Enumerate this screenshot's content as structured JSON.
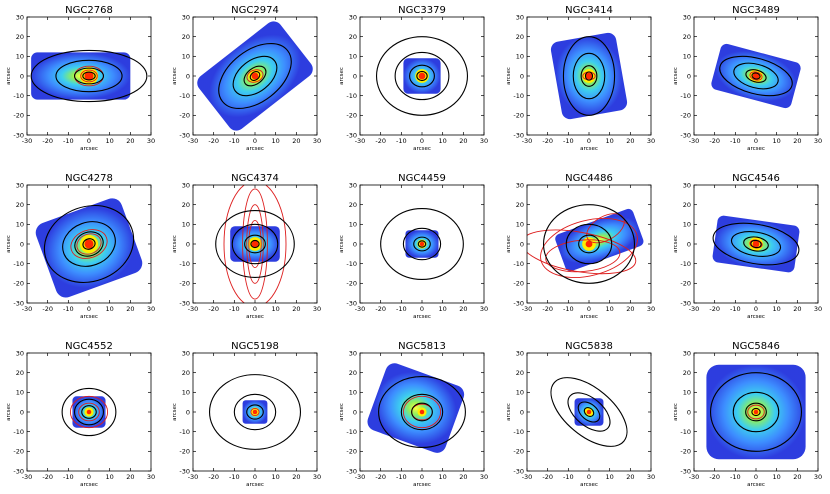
{
  "chart_data": {
    "type": "map-grid",
    "layout": {
      "rows": 3,
      "cols": 5
    },
    "xlabel": "arcsec",
    "ylabel": "arcsec",
    "xlim": [
      -30,
      30
    ],
    "ylim": [
      -30,
      30
    ],
    "xticks": [
      -30,
      -20,
      -10,
      0,
      10,
      20,
      30
    ],
    "yticks": [
      -30,
      -20,
      -10,
      0,
      10,
      20,
      30
    ],
    "colors": {
      "isophote": "#000000",
      "contour_red": "#dd1e1e",
      "map_low": "#2233dd",
      "map_mid": "#33aaff",
      "map_high": "#ffee00",
      "peak": "#ff2a00"
    },
    "panels": [
      {
        "name": "NGC2768",
        "map": {
          "w": 24,
          "h": 12,
          "pa": 0,
          "dx": -4,
          "dy": 0
        },
        "isophotes": [
          {
            "a": 28,
            "b": 13,
            "pa": 0
          },
          {
            "a": 16,
            "b": 8,
            "pa": 0
          },
          {
            "a": 7,
            "b": 4,
            "pa": 0
          },
          {
            "a": 3,
            "b": 2,
            "pa": 0
          }
        ],
        "red": [
          {
            "a": 7,
            "b": 5,
            "pa": 0,
            "dx": 0,
            "dy": 0
          },
          {
            "a": 4,
            "b": 3,
            "pa": 0,
            "dx": 0,
            "dy": 0
          }
        ],
        "peak": 4
      },
      {
        "name": "NGC2974",
        "map": {
          "w": 25,
          "h": 17,
          "pa": 38,
          "dx": 0,
          "dy": 0
        },
        "isophotes": [
          {
            "a": 20,
            "b": 13,
            "pa": 38
          },
          {
            "a": 12,
            "b": 8,
            "pa": 38
          },
          {
            "a": 6,
            "b": 4,
            "pa": 38
          },
          {
            "a": 2.5,
            "b": 2,
            "pa": 38
          }
        ],
        "red": [
          {
            "a": 4,
            "b": 3,
            "pa": 20,
            "dx": 0,
            "dy": 0
          }
        ],
        "peak": 3
      },
      {
        "name": "NGC3379",
        "map": {
          "w": 9,
          "h": 9,
          "pa": 0,
          "dx": 0,
          "dy": 0
        },
        "isophotes": [
          {
            "a": 22,
            "b": 20,
            "pa": 0
          },
          {
            "a": 13,
            "b": 12,
            "pa": 0
          },
          {
            "a": 6,
            "b": 5.5,
            "pa": 0
          },
          {
            "a": 2.5,
            "b": 2.3,
            "pa": 0
          }
        ],
        "red": [],
        "peak": 3
      },
      {
        "name": "NGC3414",
        "map": {
          "w": 16,
          "h": 20,
          "pa": 10,
          "dx": 0,
          "dy": 0
        },
        "isophotes": [
          {
            "a": 19,
            "b": 13,
            "pa": 90
          },
          {
            "a": 11,
            "b": 8,
            "pa": 90
          },
          {
            "a": 5,
            "b": 4,
            "pa": 90
          },
          {
            "a": 2,
            "b": 1.8,
            "pa": 90
          }
        ],
        "red": [
          {
            "a": 3,
            "b": 2,
            "pa": 0,
            "dx": 0,
            "dy": 0
          }
        ],
        "peak": 3
      },
      {
        "name": "NGC3489",
        "map": {
          "w": 20,
          "h": 12,
          "pa": -15,
          "dx": 0,
          "dy": 0
        },
        "isophotes": [
          {
            "a": 18,
            "b": 9,
            "pa": -15
          },
          {
            "a": 11,
            "b": 6,
            "pa": -15
          },
          {
            "a": 5,
            "b": 3,
            "pa": -15
          },
          {
            "a": 2,
            "b": 1.5,
            "pa": -15
          }
        ],
        "red": [
          {
            "a": 3,
            "b": 2,
            "pa": -15,
            "dx": 0,
            "dy": 0
          }
        ],
        "peak": 3
      },
      {
        "name": "NGC4278",
        "map": {
          "w": 22,
          "h": 20,
          "pa": 20,
          "dx": 0,
          "dy": -2
        },
        "isophotes": [
          {
            "a": 22,
            "b": 19,
            "pa": 20
          },
          {
            "a": 13,
            "b": 11,
            "pa": 20
          },
          {
            "a": 7,
            "b": 6,
            "pa": 20
          },
          {
            "a": 3,
            "b": 2.6,
            "pa": 20
          }
        ],
        "red": [
          {
            "a": 6,
            "b": 5,
            "pa": 20,
            "dx": 0,
            "dy": 0
          },
          {
            "a": 9,
            "b": 7,
            "pa": 20,
            "dx": 0,
            "dy": 0
          }
        ],
        "peak": 4
      },
      {
        "name": "NGC4374",
        "map": {
          "w": 12,
          "h": 9,
          "pa": 0,
          "dx": 0,
          "dy": 0
        },
        "isophotes": [
          {
            "a": 19,
            "b": 17,
            "pa": 0
          },
          {
            "a": 11,
            "b": 10,
            "pa": 0
          },
          {
            "a": 5,
            "b": 4.5,
            "pa": 0
          },
          {
            "a": 2,
            "b": 1.8,
            "pa": 0
          }
        ],
        "red": [
          {
            "a": 6,
            "b": 28,
            "pa": 0,
            "dx": 0,
            "dy": 0
          },
          {
            "a": 4,
            "b": 20,
            "pa": 0,
            "dx": 0,
            "dy": 0
          },
          {
            "a": 3,
            "b": 12,
            "pa": 0,
            "dx": 0,
            "dy": 0
          },
          {
            "a": 15,
            "b": 32,
            "pa": 0,
            "dx": 0,
            "dy": 0
          }
        ],
        "peak": 3
      },
      {
        "name": "NGC4459",
        "map": {
          "w": 8,
          "h": 7,
          "pa": 0,
          "dx": 0,
          "dy": 0
        },
        "isophotes": [
          {
            "a": 20,
            "b": 18,
            "pa": 0
          },
          {
            "a": 9,
            "b": 8,
            "pa": 0
          },
          {
            "a": 4,
            "b": 3.5,
            "pa": 0
          },
          {
            "a": 1.8,
            "b": 1.6,
            "pa": 0
          }
        ],
        "red": [],
        "peak": 2
      },
      {
        "name": "NGC4486",
        "map": {
          "w": 20,
          "h": 10,
          "pa": 20,
          "dx": 5,
          "dy": 2
        },
        "isophotes": [
          {
            "a": 22,
            "b": 20,
            "pa": 0
          },
          {
            "a": 11,
            "b": 10,
            "pa": 0
          },
          {
            "a": 5,
            "b": 4.5,
            "pa": 0
          }
        ],
        "red": [
          {
            "a": 28,
            "b": 10,
            "pa": -10,
            "dx": -5,
            "dy": -4
          },
          {
            "a": 24,
            "b": 14,
            "pa": 15,
            "dx": 0,
            "dy": -2
          },
          {
            "a": 18,
            "b": 8,
            "pa": 5,
            "dx": -3,
            "dy": -6
          },
          {
            "a": 10,
            "b": 6,
            "pa": 30,
            "dx": 8,
            "dy": 8
          }
        ],
        "peak": 3
      },
      {
        "name": "NGC4546",
        "map": {
          "w": 20,
          "h": 12,
          "pa": -8,
          "dx": 0,
          "dy": 0
        },
        "isophotes": [
          {
            "a": 21,
            "b": 10,
            "pa": -10
          },
          {
            "a": 12,
            "b": 6,
            "pa": -10
          },
          {
            "a": 6,
            "b": 3.5,
            "pa": -10
          },
          {
            "a": 2.5,
            "b": 1.8,
            "pa": -10
          }
        ],
        "red": [
          {
            "a": 3,
            "b": 2,
            "pa": -10,
            "dx": 0,
            "dy": 0
          }
        ],
        "peak": 3
      },
      {
        "name": "NGC4552",
        "map": {
          "w": 8,
          "h": 8,
          "pa": 0,
          "dx": 0,
          "dy": 0
        },
        "isophotes": [
          {
            "a": 13,
            "b": 12,
            "pa": 0
          },
          {
            "a": 7,
            "b": 6.5,
            "pa": 0
          },
          {
            "a": 3.5,
            "b": 3.2,
            "pa": 0
          }
        ],
        "red": [
          {
            "a": 5,
            "b": 4.5,
            "pa": 0,
            "dx": 0,
            "dy": 0
          },
          {
            "a": 9,
            "b": 8,
            "pa": 0,
            "dx": 0,
            "dy": 0
          }
        ],
        "peak": 2
      },
      {
        "name": "NGC5198",
        "map": {
          "w": 6,
          "h": 6,
          "pa": 0,
          "dx": 0,
          "dy": 0
        },
        "isophotes": [
          {
            "a": 22,
            "b": 19,
            "pa": 0
          },
          {
            "a": 10,
            "b": 9,
            "pa": 0
          },
          {
            "a": 4,
            "b": 3.6,
            "pa": 0
          }
        ],
        "red": [
          {
            "a": 2,
            "b": 1.8,
            "pa": 0,
            "dx": 0,
            "dy": 0
          }
        ],
        "peak": 2
      },
      {
        "name": "NGC5813",
        "map": {
          "w": 20,
          "h": 18,
          "pa": -20,
          "dx": -3,
          "dy": 2
        },
        "isophotes": [
          {
            "a": 21,
            "b": 18,
            "pa": 0
          },
          {
            "a": 10,
            "b": 9,
            "pa": 0
          },
          {
            "a": 5,
            "b": 4.5,
            "pa": 0
          }
        ],
        "red": [
          {
            "a": 9,
            "b": 8,
            "pa": 0,
            "dx": 0,
            "dy": 0
          },
          {
            "a": 5,
            "b": 4,
            "pa": 0,
            "dx": 0,
            "dy": 0
          }
        ],
        "peak": 2
      },
      {
        "name": "NGC5838",
        "map": {
          "w": 7,
          "h": 7,
          "pa": 0,
          "dx": 0,
          "dy": 0
        },
        "isophotes": [
          {
            "a": 22,
            "b": 12,
            "pa": -40
          },
          {
            "a": 12,
            "b": 7,
            "pa": -40
          },
          {
            "a": 6,
            "b": 4,
            "pa": -40
          },
          {
            "a": 2.5,
            "b": 2,
            "pa": -40
          }
        ],
        "red": [],
        "peak": 2
      },
      {
        "name": "NGC5846",
        "map": {
          "w": 24,
          "h": 24,
          "pa": 0,
          "dx": 0,
          "dy": 0
        },
        "isophotes": [
          {
            "a": 22,
            "b": 20,
            "pa": 0
          },
          {
            "a": 11,
            "b": 10,
            "pa": 0
          },
          {
            "a": 5,
            "b": 4.5,
            "pa": 0
          },
          {
            "a": 2,
            "b": 1.8,
            "pa": 0
          }
        ],
        "red": [
          {
            "a": 4,
            "b": 3.5,
            "pa": 0,
            "dx": 0,
            "dy": 0
          }
        ],
        "peak": 2
      }
    ]
  }
}
